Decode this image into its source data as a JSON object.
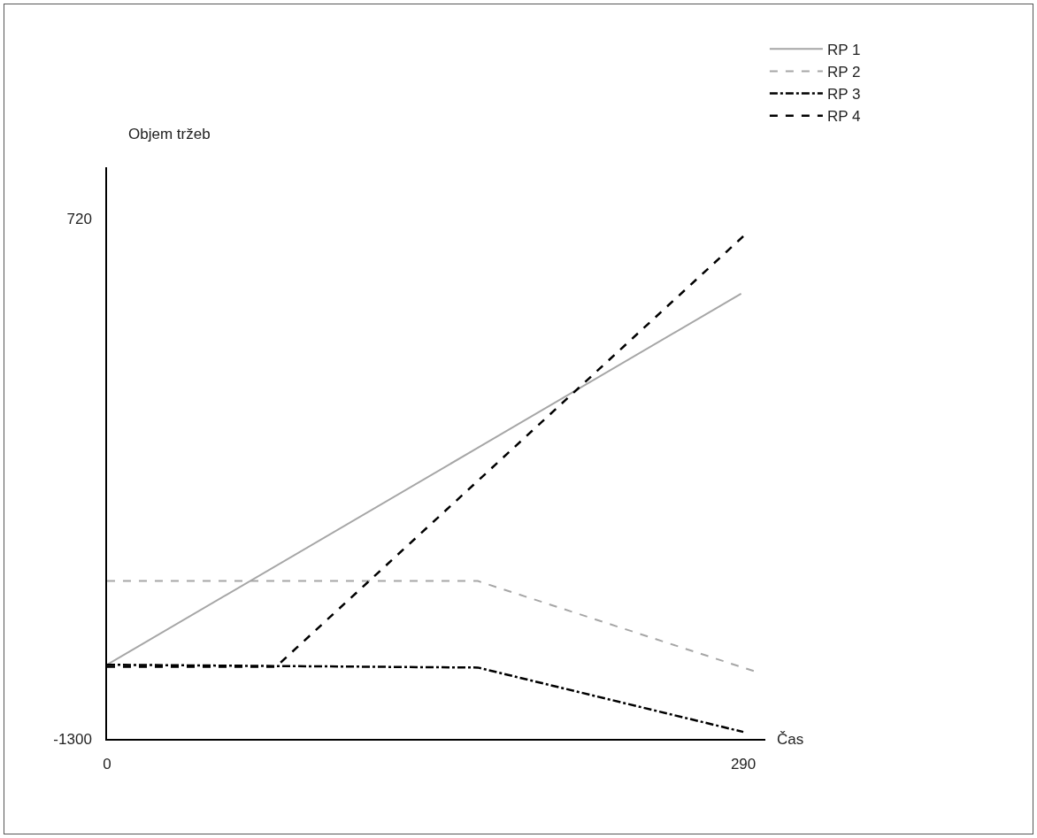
{
  "chart_data": {
    "type": "line",
    "ylabel": "Objem tržeb",
    "xlabel": "Čas",
    "xlim": [
      0,
      300
    ],
    "ylim": [
      -1300,
      920
    ],
    "xticks": [
      0,
      290
    ],
    "yticks": [
      -1300,
      720
    ],
    "grid": false,
    "legend": "top right",
    "marker": "none",
    "series": [
      {
        "name": "RP 1",
        "color": "#a6a6a6",
        "line_style": "solid",
        "x": [
          0,
          289
        ],
        "values": [
          -1012,
          429
        ]
      },
      {
        "name": "RP 2",
        "color": "#a6a6a6",
        "line_style": "dashed",
        "x": [
          0,
          169,
          296
        ],
        "values": [
          -687,
          -687,
          -1040
        ]
      },
      {
        "name": "RP 3",
        "color": "#000000",
        "line_style": "dashdot",
        "x": [
          0,
          169,
          290
        ],
        "values": [
          -1012,
          -1023,
          -1273
        ]
      },
      {
        "name": "RP 4",
        "color": "#000000",
        "line_style": "dashed",
        "x": [
          0,
          77,
          290
        ],
        "values": [
          -1020,
          -1020,
          652
        ]
      }
    ]
  }
}
